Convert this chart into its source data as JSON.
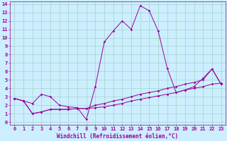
{
  "xlabel": "Windchill (Refroidissement éolien,°C)",
  "bg_color": "#cceeff",
  "line_color": "#990099",
  "grid_color": "#99ccbb",
  "xlim": [
    -0.5,
    23.5
  ],
  "ylim": [
    -0.3,
    14.3
  ],
  "xticks": [
    0,
    1,
    2,
    3,
    4,
    5,
    6,
    7,
    8,
    9,
    10,
    11,
    12,
    13,
    14,
    15,
    16,
    17,
    18,
    19,
    20,
    21,
    22,
    23
  ],
  "yticks": [
    0,
    1,
    2,
    3,
    4,
    5,
    6,
    7,
    8,
    9,
    10,
    11,
    12,
    13,
    14
  ],
  "line1_x": [
    0,
    1,
    2,
    3,
    4,
    5,
    6,
    7,
    8,
    9,
    10,
    11,
    12,
    13,
    14,
    15,
    16,
    17,
    18,
    19,
    20,
    21,
    22,
    23
  ],
  "line1_y": [
    2.8,
    2.5,
    2.2,
    3.3,
    3.0,
    2.0,
    1.8,
    1.7,
    0.3,
    4.2,
    9.5,
    10.8,
    12.0,
    11.0,
    13.8,
    13.2,
    10.8,
    6.4,
    3.5,
    3.8,
    4.2,
    5.2,
    6.3,
    4.5
  ],
  "line2_x": [
    0,
    1,
    2,
    3,
    4,
    5,
    6,
    7,
    8,
    9,
    10,
    11,
    12,
    13,
    14,
    15,
    16,
    17,
    18,
    19,
    20,
    21,
    22,
    23
  ],
  "line2_y": [
    2.8,
    2.5,
    1.0,
    1.2,
    1.5,
    1.5,
    1.5,
    1.6,
    1.6,
    1.7,
    1.8,
    2.0,
    2.2,
    2.5,
    2.7,
    2.9,
    3.1,
    3.3,
    3.5,
    3.8,
    4.0,
    4.2,
    4.5,
    4.6
  ],
  "line3_x": [
    0,
    1,
    2,
    3,
    4,
    5,
    6,
    7,
    8,
    9,
    10,
    11,
    12,
    13,
    14,
    15,
    16,
    17,
    18,
    19,
    20,
    21,
    22,
    23
  ],
  "line3_y": [
    2.8,
    2.5,
    1.0,
    1.2,
    1.5,
    1.5,
    1.5,
    1.6,
    1.6,
    2.0,
    2.2,
    2.5,
    2.7,
    3.0,
    3.3,
    3.5,
    3.7,
    4.0,
    4.2,
    4.5,
    4.7,
    5.0,
    6.3,
    4.5
  ],
  "tick_fontsize": 5,
  "xlabel_fontsize": 5.5,
  "marker": "D",
  "markersize": 1.8,
  "linewidth": 0.7
}
